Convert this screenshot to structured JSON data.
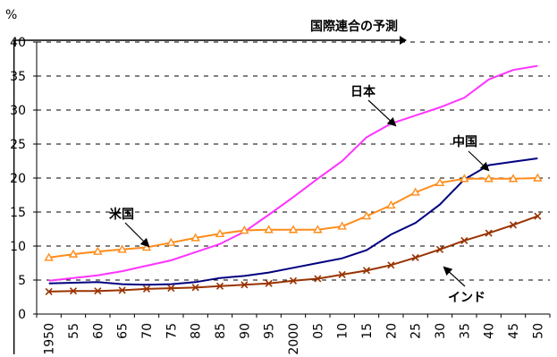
{
  "chart_data": {
    "type": "line",
    "ylabel": "%",
    "ylim": [
      0,
      40
    ],
    "yticks": [
      "0",
      "5",
      "10",
      "15",
      "20",
      "25",
      "30",
      "35",
      "40"
    ],
    "grid": true,
    "x": [
      "1950",
      "55",
      "60",
      "65",
      "70",
      "75",
      "80",
      "85",
      "90",
      "95",
      "2000",
      "05",
      "10",
      "15",
      "20",
      "25",
      "30",
      "35",
      "40",
      "45",
      "50"
    ],
    "projection": {
      "label": "国際連合の予測",
      "start": "2005"
    },
    "series": [
      {
        "name": "日本",
        "color": "#ff33ff",
        "marker": "none",
        "values": [
          4.9,
          5.3,
          5.7,
          6.3,
          7.1,
          7.9,
          9.1,
          10.3,
          12.1,
          14.6,
          17.2,
          19.9,
          22.5,
          26.0,
          28.0,
          29.2,
          30.4,
          31.8,
          34.5,
          35.9,
          36.5
        ]
      },
      {
        "name": "中国",
        "color": "#000080",
        "marker": "none",
        "values": [
          4.5,
          4.6,
          4.7,
          4.4,
          4.3,
          4.4,
          4.7,
          5.3,
          5.6,
          6.1,
          6.8,
          7.5,
          8.2,
          9.4,
          11.7,
          13.4,
          16.1,
          19.8,
          21.9,
          22.4,
          22.9
        ]
      },
      {
        "name": "米国",
        "color": "#ff8c1a",
        "marker": "triangle",
        "values": [
          8.3,
          8.8,
          9.2,
          9.5,
          9.8,
          10.5,
          11.2,
          11.8,
          12.3,
          12.4,
          12.4,
          12.4,
          12.9,
          14.4,
          16.0,
          17.9,
          19.3,
          19.9,
          19.9,
          19.9,
          20.0
        ]
      },
      {
        "name": "インド",
        "color": "#993300",
        "marker": "x",
        "values": [
          3.3,
          3.4,
          3.4,
          3.5,
          3.7,
          3.8,
          3.9,
          4.1,
          4.3,
          4.5,
          4.9,
          5.2,
          5.8,
          6.4,
          7.2,
          8.3,
          9.5,
          10.8,
          11.9,
          13.1,
          14.4
        ]
      }
    ]
  }
}
